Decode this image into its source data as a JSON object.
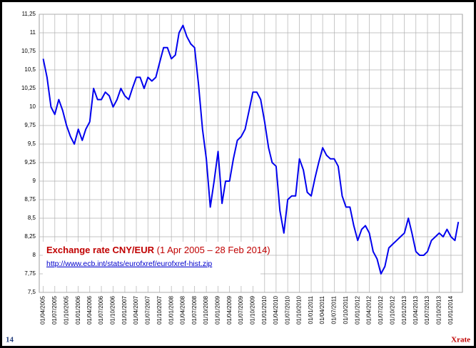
{
  "chart_data": {
    "type": "line",
    "annotation": {
      "title_bold": "Exchange rate CNY/EUR",
      "title_rest": "(1 Apr 2005 – 28 Feb 2014)",
      "link": "http://www.ecb.int/stats/eurofxref/eurofxref-hist.zip"
    },
    "x": [
      "01/04/2005",
      "01/05/2005",
      "01/06/2005",
      "01/07/2005",
      "01/08/2005",
      "01/09/2005",
      "01/10/2005",
      "01/11/2005",
      "01/12/2005",
      "01/01/2006",
      "01/02/2006",
      "01/03/2006",
      "01/04/2006",
      "01/05/2006",
      "01/06/2006",
      "01/07/2006",
      "01/08/2006",
      "01/09/2006",
      "01/10/2006",
      "01/11/2006",
      "01/12/2006",
      "01/01/2007",
      "01/02/2007",
      "01/03/2007",
      "01/04/2007",
      "01/05/2007",
      "01/06/2007",
      "01/07/2007",
      "01/08/2007",
      "01/09/2007",
      "01/10/2007",
      "01/11/2007",
      "01/12/2007",
      "01/01/2008",
      "01/02/2008",
      "01/03/2008",
      "01/04/2008",
      "01/05/2008",
      "01/06/2008",
      "01/07/2008",
      "01/08/2008",
      "01/09/2008",
      "01/10/2008",
      "01/11/2008",
      "01/12/2008",
      "01/01/2009",
      "01/02/2009",
      "01/03/2009",
      "01/04/2009",
      "01/05/2009",
      "01/06/2009",
      "01/07/2009",
      "01/08/2009",
      "01/09/2009",
      "01/10/2009",
      "01/11/2009",
      "01/12/2009",
      "01/01/2010",
      "01/02/2010",
      "01/03/2010",
      "01/04/2010",
      "01/05/2010",
      "01/06/2010",
      "01/07/2010",
      "01/08/2010",
      "01/09/2010",
      "01/10/2010",
      "01/11/2010",
      "01/12/2010",
      "01/01/2011",
      "01/02/2011",
      "01/03/2011",
      "01/04/2011",
      "01/05/2011",
      "01/06/2011",
      "01/07/2011",
      "01/08/2011",
      "01/09/2011",
      "01/10/2011",
      "01/11/2011",
      "01/12/2011",
      "01/01/2012",
      "01/02/2012",
      "01/03/2012",
      "01/04/2012",
      "01/05/2012",
      "01/06/2012",
      "01/07/2012",
      "01/08/2012",
      "01/09/2012",
      "01/10/2012",
      "01/11/2012",
      "01/12/2012",
      "01/01/2013",
      "01/02/2013",
      "01/03/2013",
      "01/04/2013",
      "01/05/2013",
      "01/06/2013",
      "01/07/2013",
      "01/08/2013",
      "01/09/2013",
      "01/10/2013",
      "01/11/2013",
      "01/12/2013",
      "01/01/2014",
      "01/02/2014",
      "28/02/2014"
    ],
    "series": [
      {
        "color": "#0000ee",
        "values": [
          10.65,
          10.4,
          10.0,
          9.9,
          10.1,
          9.95,
          9.75,
          9.6,
          9.5,
          9.7,
          9.55,
          9.7,
          9.8,
          10.25,
          10.1,
          10.1,
          10.2,
          10.15,
          10.0,
          10.1,
          10.25,
          10.15,
          10.1,
          10.25,
          10.4,
          10.4,
          10.25,
          10.4,
          10.35,
          10.4,
          10.6,
          10.8,
          10.8,
          10.65,
          10.7,
          11.0,
          11.1,
          10.95,
          10.85,
          10.8,
          10.3,
          9.7,
          9.3,
          8.65,
          9.0,
          9.4,
          8.7,
          9.0,
          9.0,
          9.3,
          9.55,
          9.6,
          9.7,
          9.95,
          10.2,
          10.2,
          10.1,
          9.8,
          9.45,
          9.25,
          9.2,
          8.6,
          8.3,
          8.75,
          8.8,
          8.8,
          9.3,
          9.15,
          8.85,
          8.8,
          9.05,
          9.25,
          9.45,
          9.35,
          9.3,
          9.3,
          9.2,
          8.8,
          8.65,
          8.65,
          8.4,
          8.2,
          8.35,
          8.4,
          8.3,
          8.05,
          7.95,
          7.75,
          7.85,
          8.1,
          8.15,
          8.2,
          8.25,
          8.3,
          8.5,
          8.3,
          8.05,
          8.0,
          8.0,
          8.05,
          8.2,
          8.25,
          8.3,
          8.25,
          8.35,
          8.25,
          8.2,
          8.45
        ]
      }
    ],
    "xlim": [
      "01/03/2005",
      "01/04/2014"
    ],
    "xticks": [
      "01/04/2005",
      "01/07/2005",
      "01/10/2005",
      "01/01/2006",
      "01/04/2006",
      "01/07/2006",
      "01/10/2006",
      "01/01/2007",
      "01/04/2007",
      "01/07/2007",
      "01/10/2007",
      "01/01/2008",
      "01/04/2008",
      "01/07/2008",
      "01/10/2008",
      "01/01/2009",
      "01/04/2009",
      "01/07/2009",
      "01/10/2009",
      "01/01/2010",
      "01/04/2010",
      "01/07/2010",
      "01/10/2010",
      "01/01/2011",
      "01/04/2011",
      "01/07/2011",
      "01/10/2011",
      "01/01/2012",
      "01/04/2012",
      "01/07/2012",
      "01/10/2012",
      "01/01/2013",
      "01/04/2013",
      "01/07/2013",
      "01/10/2013",
      "01/01/2014"
    ],
    "ylim": [
      7.5,
      11.25
    ],
    "yticks": [
      {
        "value": 7.5,
        "label": "7,5"
      },
      {
        "value": 7.75,
        "label": "7,75"
      },
      8,
      {
        "value": 8.25,
        "label": "8,25"
      },
      {
        "value": 8.5,
        "label": "8,5"
      },
      {
        "value": 8.75,
        "label": "8,75"
      },
      9,
      {
        "value": 9.25,
        "label": "9,25"
      },
      {
        "value": 9.5,
        "label": "9,5"
      },
      {
        "value": 9.75,
        "label": "9,75"
      },
      10,
      {
        "value": 10.25,
        "label": "10,25"
      },
      {
        "value": 10.5,
        "label": "10,5"
      },
      {
        "value": 10.75,
        "label": "10,75"
      },
      11,
      {
        "value": 11.25,
        "label": "11,25"
      }
    ],
    "grid": true
  },
  "footer": {
    "page_number": "14",
    "brand": "Xrate"
  }
}
